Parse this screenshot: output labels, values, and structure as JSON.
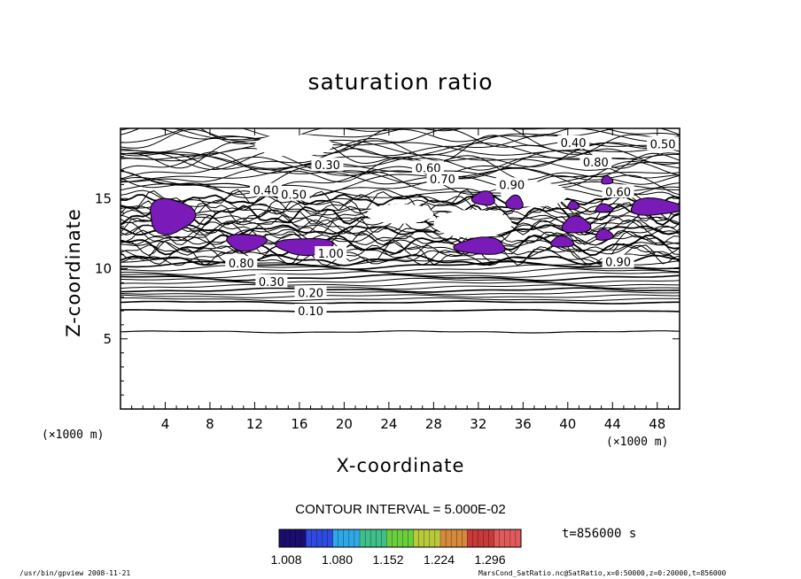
{
  "chart_data": {
    "type": "contour",
    "title": "saturation ratio",
    "xlabel": "X-coordinate",
    "ylabel": "Z-coordinate",
    "x_unit": "(×1000 m)",
    "xlim": [
      0,
      50
    ],
    "ylim": [
      0,
      20
    ],
    "x_ticks": [
      4,
      8,
      12,
      16,
      20,
      24,
      28,
      32,
      36,
      40,
      44,
      48
    ],
    "y_ticks": [
      5,
      10,
      15
    ],
    "contour_labels": [
      {
        "text": "0.10",
        "x": 17.0,
        "y": 7.0
      },
      {
        "text": "0.20",
        "x": 17.0,
        "y": 8.3
      },
      {
        "text": "0.30",
        "x": 13.5,
        "y": 9.1
      },
      {
        "text": "0.30",
        "x": 18.5,
        "y": 17.4
      },
      {
        "text": "0.40",
        "x": 13.0,
        "y": 15.6
      },
      {
        "text": "0.50",
        "x": 15.5,
        "y": 15.3
      },
      {
        "text": "0.60",
        "x": 27.5,
        "y": 17.2
      },
      {
        "text": "0.70",
        "x": 28.8,
        "y": 16.4
      },
      {
        "text": "0.80",
        "x": 42.5,
        "y": 17.6
      },
      {
        "text": "0.90",
        "x": 35.0,
        "y": 16.0
      },
      {
        "text": "0.40",
        "x": 40.5,
        "y": 19.0
      },
      {
        "text": "0.50",
        "x": 48.5,
        "y": 18.9
      },
      {
        "text": "0.60",
        "x": 44.5,
        "y": 15.5
      },
      {
        "text": "0.80",
        "x": 10.8,
        "y": 10.4
      },
      {
        "text": "0.90",
        "x": 44.5,
        "y": 10.5
      },
      {
        "text": "1.00",
        "x": 18.8,
        "y": 11.1
      }
    ],
    "supersaturated_regions": [
      {
        "x": [
          2.5,
          6.5
        ],
        "z": [
          12.5,
          15.0
        ]
      },
      {
        "x": [
          9.5,
          13.0
        ],
        "z": [
          11.3,
          12.5
        ]
      },
      {
        "x": [
          14.0,
          19.0
        ],
        "z": [
          11.0,
          12.2
        ]
      },
      {
        "x": [
          30.0,
          34.5
        ],
        "z": [
          11.0,
          12.2
        ]
      },
      {
        "x": [
          31.5,
          33.5
        ],
        "z": [
          14.5,
          15.5
        ]
      },
      {
        "x": [
          34.5,
          36.0
        ],
        "z": [
          14.2,
          15.2
        ]
      },
      {
        "x": [
          39.5,
          42.0
        ],
        "z": [
          12.5,
          13.7
        ]
      },
      {
        "x": [
          42.5,
          44.0
        ],
        "z": [
          12.0,
          12.8
        ]
      },
      {
        "x": [
          45.5,
          50.0
        ],
        "z": [
          13.8,
          15.0
        ]
      },
      {
        "x": [
          42.5,
          44.0
        ],
        "z": [
          14.0,
          14.6
        ]
      },
      {
        "x": [
          43.0,
          44.0
        ],
        "z": [
          16.0,
          16.6
        ]
      },
      {
        "x": [
          40.0,
          41.0
        ],
        "z": [
          14.2,
          14.8
        ]
      },
      {
        "x": [
          38.5,
          40.5
        ],
        "z": [
          11.5,
          12.3
        ]
      }
    ]
  },
  "legend": {
    "contour_interval": "CONTOUR INTERVAL = 5.000E-02",
    "colorbar_ticks": [
      "1.008",
      "1.080",
      "1.152",
      "1.224",
      "1.296"
    ],
    "colorbar_colors": [
      "#1a0d6e",
      "#2d4be0",
      "#2fa8e6",
      "#3fbf8a",
      "#6acf3c",
      "#b8c93c",
      "#d48a3a",
      "#c83a3a",
      "#e05a5a"
    ]
  },
  "time_label": "t=856000 s",
  "footer": {
    "left": "/usr/bin/gpview  2008-11-21",
    "right": "MarsCond_SatRatio.nc@SatRatio,x=0:50000,z=0:20000,t=856000"
  },
  "colors": {
    "fill": "#7a1ab8",
    "line": "#000000"
  }
}
